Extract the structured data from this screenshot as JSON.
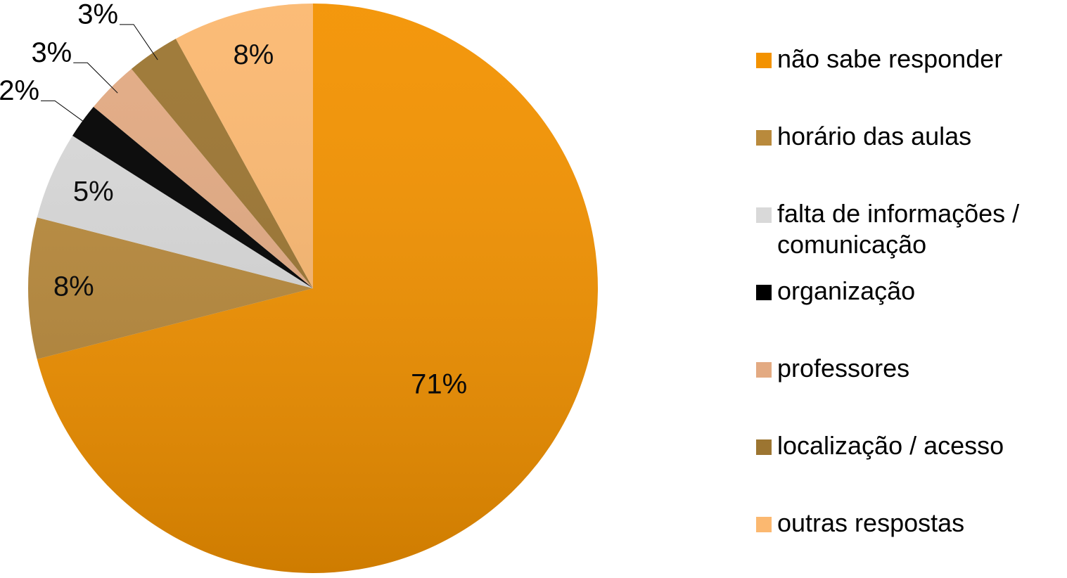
{
  "chart_data": {
    "type": "pie",
    "categories": [
      "não sabe responder",
      "horário das aulas",
      "falta de informações / comunicação",
      "organização",
      "professores",
      "localização / acesso",
      "outras respostas"
    ],
    "values": [
      71,
      8,
      5,
      2,
      3,
      3,
      8
    ],
    "value_labels": [
      "71%",
      "8%",
      "5%",
      "2%",
      "3%",
      "3%",
      "8%"
    ],
    "colors": [
      "#f39200",
      "#b98a3c",
      "#d9d9d9",
      "#000000",
      "#e3aa82",
      "#9c7531",
      "#fbb870"
    ],
    "legend": "right"
  }
}
